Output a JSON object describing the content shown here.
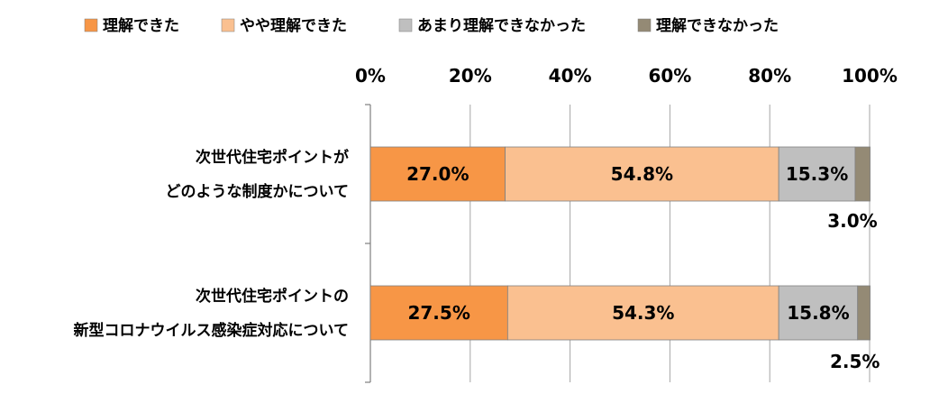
{
  "chart_data": {
    "type": "bar",
    "orientation": "horizontal",
    "stacked": true,
    "percent": true,
    "title": "",
    "xlim": [
      0,
      100
    ],
    "x_ticks": [
      "0%",
      "20%",
      "40%",
      "60%",
      "80%",
      "100%"
    ],
    "tick_position": "top",
    "legend_position": "top-left",
    "categories": [
      [
        "次世代住宅ポイントが",
        "どのような制度かについて"
      ],
      [
        "次世代住宅ポイントの",
        "新型コロナウイルス感染症対応について"
      ]
    ],
    "series": [
      {
        "name": "理解できた",
        "color": "#F79646",
        "values": [
          27.0,
          27.5
        ],
        "labels": [
          "27.0%",
          "27.5%"
        ]
      },
      {
        "name": "やや理解できた",
        "color": "#FAC090",
        "values": [
          54.8,
          54.3
        ],
        "labels": [
          "54.8%",
          "54.3%"
        ]
      },
      {
        "name": "あまり理解できなかった",
        "color": "#BFBFBF",
        "values": [
          15.3,
          15.8
        ],
        "labels": [
          "15.3%",
          "15.8%"
        ]
      },
      {
        "name": "理解できなかった",
        "color": "#948A75",
        "values": [
          3.0,
          2.5
        ],
        "labels": [
          "3.0%",
          "2.5%"
        ]
      }
    ]
  }
}
